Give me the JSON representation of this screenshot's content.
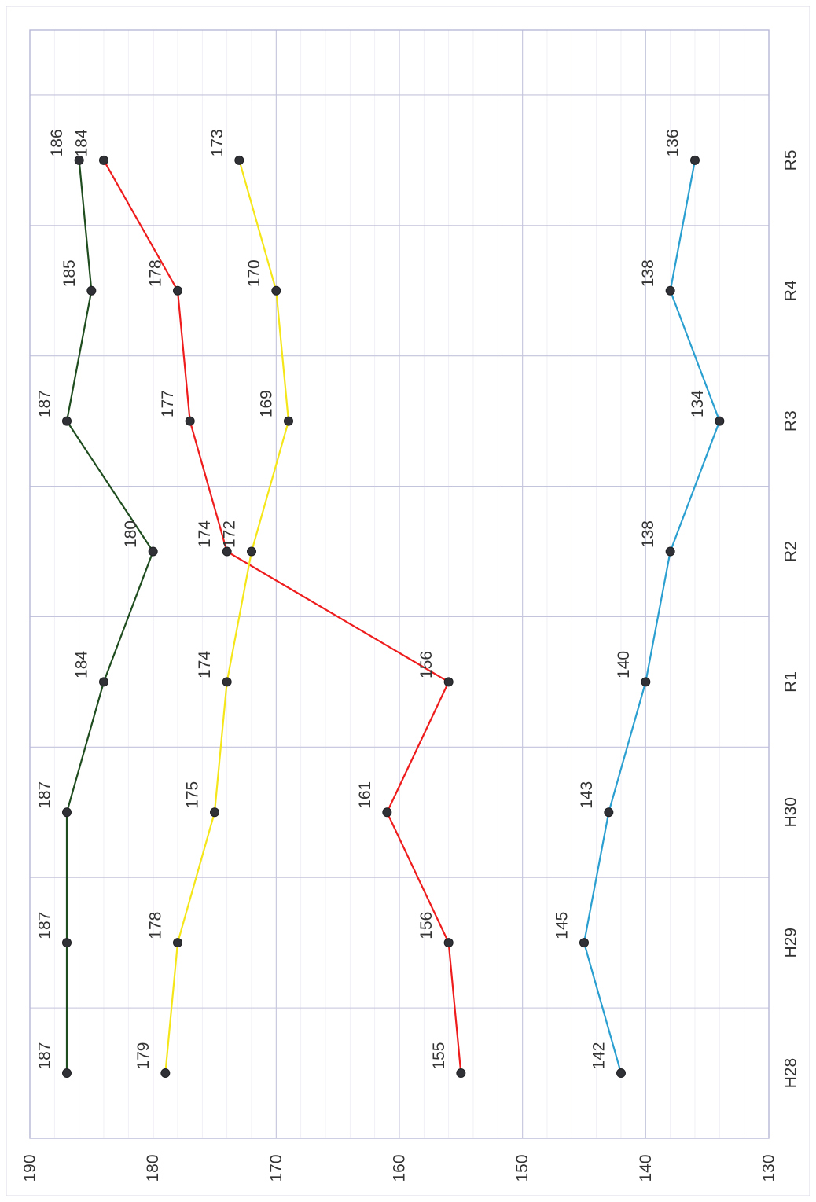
{
  "chart_data": {
    "type": "line",
    "orientation": "rotated-90-clockwise",
    "categories": [
      "H28",
      "H29",
      "H30",
      "R1",
      "R2",
      "R3",
      "R4",
      "R5"
    ],
    "ylim": [
      130,
      190
    ],
    "yticks": [
      190,
      180,
      170,
      160,
      150,
      140,
      130
    ],
    "grid": true,
    "series": [
      {
        "color": "#1f4d1f",
        "values": [
          187,
          187,
          187,
          184,
          180,
          187,
          185,
          186
        ]
      },
      {
        "color": "#ee1c1c",
        "values": [
          155,
          156,
          161,
          156,
          174,
          177,
          178,
          184
        ]
      },
      {
        "color": "#f5e61a",
        "values": [
          179,
          178,
          175,
          174,
          172,
          169,
          170,
          173
        ]
      },
      {
        "color": "#2a9fd0",
        "values": [
          142,
          145,
          143,
          140,
          138,
          134,
          138,
          136
        ]
      }
    ]
  }
}
